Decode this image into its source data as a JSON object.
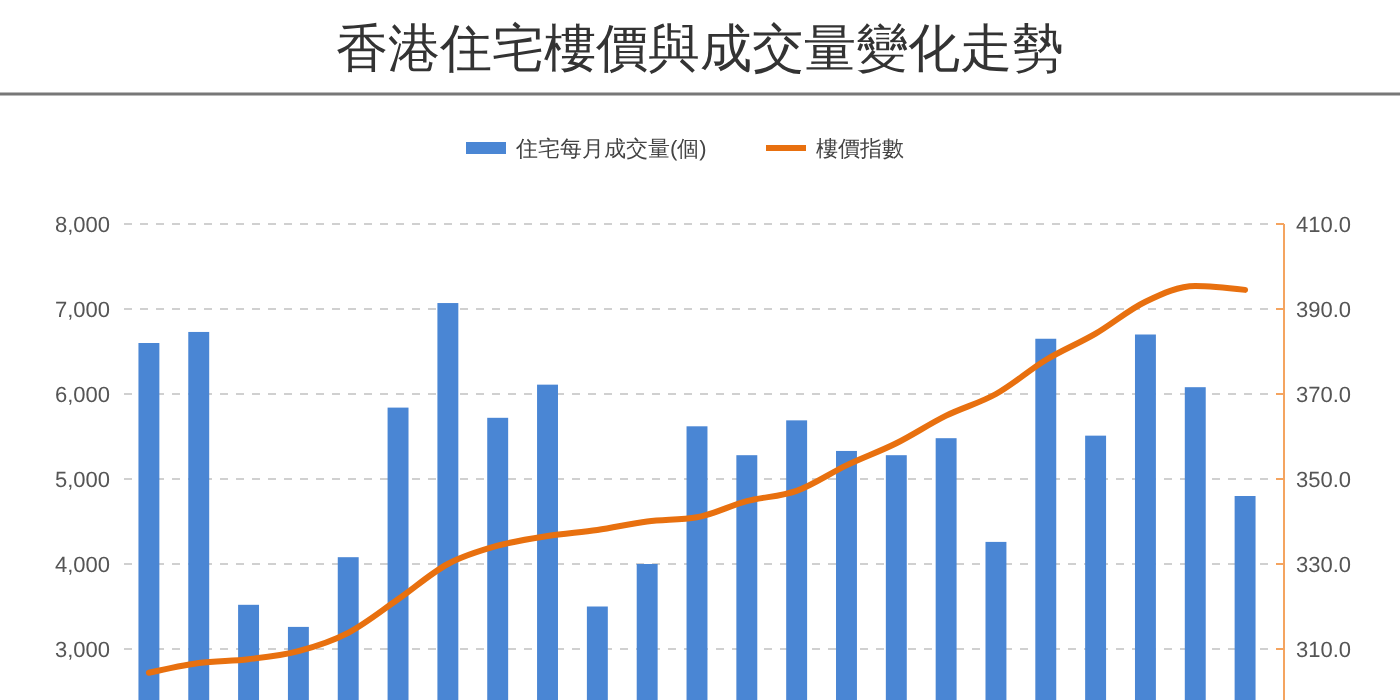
{
  "chart_data": {
    "type": "bar",
    "title": "香港住宅樓價與成交量變化走勢",
    "categories": [
      null,
      null,
      null,
      null,
      null,
      null,
      null,
      null,
      null,
      null,
      null,
      null,
      null,
      null,
      null,
      null,
      null,
      null,
      null,
      null,
      null,
      null,
      null
    ],
    "series": [
      {
        "name": "住宅每月成交量(個)",
        "color": "#4a86d4",
        "values": [
          6600,
          6730,
          3520,
          3260,
          4080,
          5840,
          7070,
          5720,
          6110,
          3500,
          4000,
          5620,
          5280,
          5690,
          5330,
          5280,
          5480,
          4260,
          6650,
          5510,
          6700,
          6080,
          4800
        ]
      },
      {
        "name": "樓價指數",
        "color": "#e8700f",
        "type": "line",
        "axis": "y2",
        "values": [
          304.4,
          306.7,
          307.6,
          309.5,
          313.8,
          321.7,
          330,
          334.3,
          336.6,
          338,
          340,
          341,
          344.8,
          347.2,
          353.2,
          358.4,
          364.9,
          370,
          378,
          384.2,
          391.7,
          395.4,
          394.5
        ]
      }
    ],
    "ylim": [
      2400,
      8000
    ],
    "yticks": [
      {
        "value": 3000,
        "label": "3,000"
      },
      {
        "value": 4000,
        "label": "4,000"
      },
      {
        "value": 5000,
        "label": "5,000"
      },
      {
        "value": 6000,
        "label": "6,000"
      },
      {
        "value": 7000,
        "label": "7,000"
      },
      {
        "value": 8000,
        "label": "8,000"
      }
    ],
    "y2lim": [
      298,
      410
    ],
    "y2ticks": [
      {
        "value": 310,
        "label": "310.0"
      },
      {
        "value": 330,
        "label": "330.0"
      },
      {
        "value": 350,
        "label": "350.0"
      },
      {
        "value": 370,
        "label": "370.0"
      },
      {
        "value": 390,
        "label": "390.0"
      },
      {
        "value": 410,
        "label": "410.0"
      }
    ],
    "grid": "y",
    "legend": "top",
    "marker": "none",
    "line_style": "solid"
  }
}
